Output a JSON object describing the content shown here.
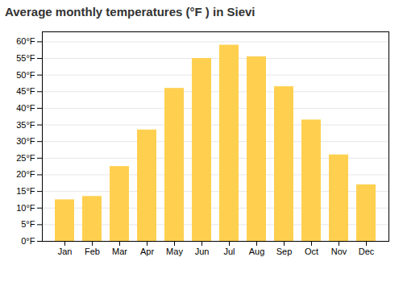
{
  "chart_data": {
    "type": "bar",
    "title": "Average monthly temperatures (°F ) in Sievi",
    "categories": [
      "Jan",
      "Feb",
      "Mar",
      "Apr",
      "May",
      "Jun",
      "Jul",
      "Aug",
      "Sep",
      "Oct",
      "Nov",
      "Dec"
    ],
    "values": [
      12.5,
      13.5,
      22.5,
      33.5,
      46.0,
      55.0,
      59.0,
      55.5,
      46.5,
      36.5,
      26.0,
      17.0
    ],
    "color": "#FFD050",
    "ylim": [
      0,
      63
    ],
    "yticks": [
      {
        "value": 0,
        "label": "0°F"
      },
      {
        "value": 5,
        "label": "5°F"
      },
      {
        "value": 10,
        "label": "10°F"
      },
      {
        "value": 15,
        "label": "15°F"
      },
      {
        "value": 20,
        "label": "20°F"
      },
      {
        "value": 25,
        "label": "25°F"
      },
      {
        "value": 30,
        "label": "30°F"
      },
      {
        "value": 35,
        "label": "35°F"
      },
      {
        "value": 40,
        "label": "40°F"
      },
      {
        "value": 45,
        "label": "45°F"
      },
      {
        "value": 50,
        "label": "50°F"
      },
      {
        "value": 55,
        "label": "55°F"
      },
      {
        "value": 60,
        "label": "60°F"
      }
    ],
    "grid": true
  }
}
